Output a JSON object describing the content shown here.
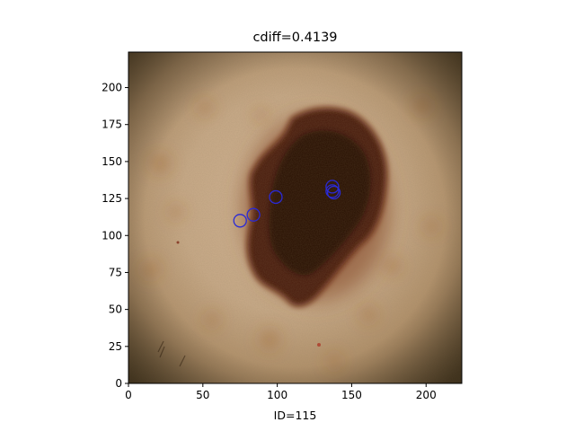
{
  "chart_data": {
    "type": "scatter",
    "title": "cdiff=0.4139",
    "xlabel": "ID=115",
    "ylabel": "",
    "xlim": [
      0,
      224
    ],
    "ylim": [
      0,
      224
    ],
    "xticks": [
      0,
      50,
      100,
      150,
      200
    ],
    "yticks": [
      0,
      25,
      50,
      75,
      100,
      125,
      150,
      175,
      200
    ],
    "grid": false,
    "legend": "none",
    "background": "dermoscopic image of a dark pigmented skin lesion",
    "series": [
      {
        "marker": "hollow circle",
        "color": "#2a2ad6",
        "points": [
          {
            "x": 75,
            "y": 110
          },
          {
            "x": 84,
            "y": 114
          },
          {
            "x": 99,
            "y": 126
          },
          {
            "x": 137,
            "y": 133
          },
          {
            "x": 138,
            "y": 129
          },
          {
            "x": 137,
            "y": 130
          }
        ]
      }
    ]
  }
}
